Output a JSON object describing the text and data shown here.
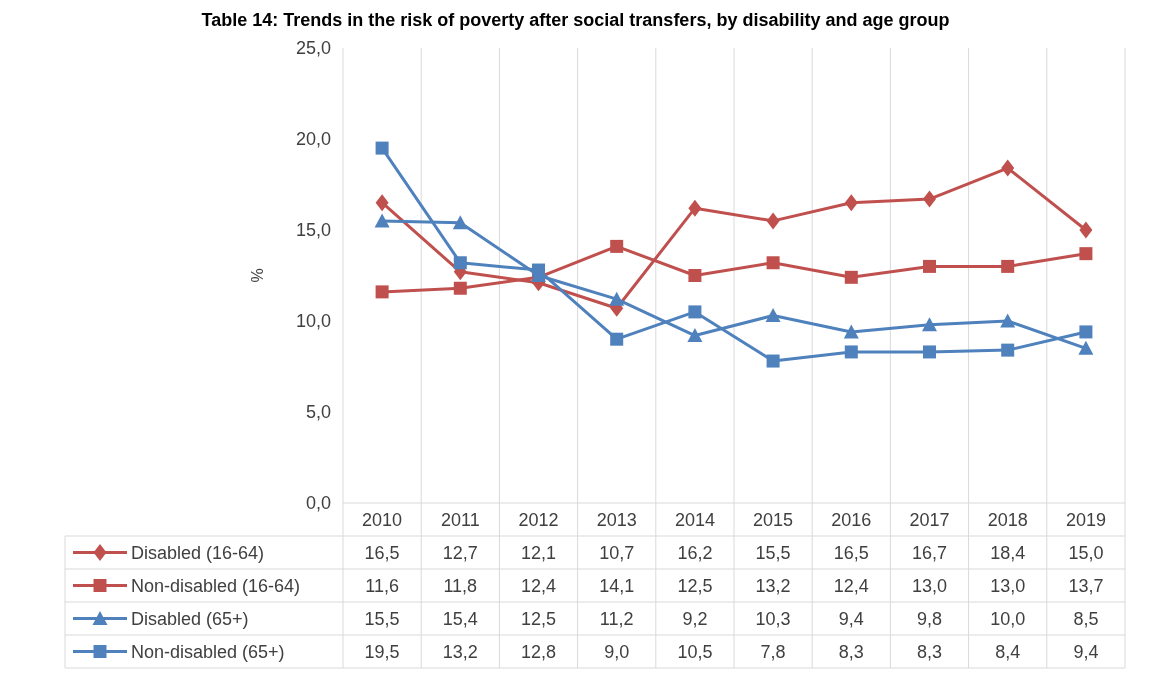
{
  "chart_data": {
    "type": "line",
    "title": "Table 14: Trends in the risk of poverty after social transfers, by disability and age group",
    "ylabel": "%",
    "categories": [
      "2010",
      "2011",
      "2012",
      "2013",
      "2014",
      "2015",
      "2016",
      "2017",
      "2018",
      "2019"
    ],
    "series": [
      {
        "name": "Disabled (16-64)",
        "color": "#c0504d",
        "marker": "diamond",
        "values": [
          16.5,
          12.7,
          12.1,
          10.7,
          16.2,
          15.5,
          16.5,
          16.7,
          18.4,
          15.0
        ],
        "value_labels": [
          "16,5",
          "12,7",
          "12,1",
          "10,7",
          "16,2",
          "15,5",
          "16,5",
          "16,7",
          "18,4",
          "15,0"
        ]
      },
      {
        "name": "Non-disabled (16-64)",
        "color": "#c0504d",
        "marker": "square",
        "values": [
          11.6,
          11.8,
          12.4,
          14.1,
          12.5,
          13.2,
          12.4,
          13.0,
          13.0,
          13.7
        ],
        "value_labels": [
          "11,6",
          "11,8",
          "12,4",
          "14,1",
          "12,5",
          "13,2",
          "12,4",
          "13,0",
          "13,0",
          "13,7"
        ]
      },
      {
        "name": "Disabled (65+)",
        "color": "#4f81bd",
        "marker": "triangle",
        "values": [
          15.5,
          15.4,
          12.5,
          11.2,
          9.2,
          10.3,
          9.4,
          9.8,
          10.0,
          8.5
        ],
        "value_labels": [
          "15,5",
          "15,4",
          "12,5",
          "11,2",
          "9,2",
          "10,3",
          "9,4",
          "9,8",
          "10,0",
          "8,5"
        ]
      },
      {
        "name": "Non-disabled (65+)",
        "color": "#4f81bd",
        "marker": "square",
        "values": [
          19.5,
          13.2,
          12.8,
          9.0,
          10.5,
          7.8,
          8.3,
          8.3,
          8.4,
          9.4
        ],
        "value_labels": [
          "19,5",
          "13,2",
          "12,8",
          "9,0",
          "10,5",
          "7,8",
          "8,3",
          "8,3",
          "8,4",
          "9,4"
        ]
      }
    ],
    "ylim": [
      0,
      25
    ],
    "yticks": [
      {
        "value": 0,
        "label": "0,0"
      },
      {
        "value": 5,
        "label": "5,0"
      },
      {
        "value": 10,
        "label": "10,0"
      },
      {
        "value": 15,
        "label": "15,0"
      },
      {
        "value": 20,
        "label": "20,0"
      },
      {
        "value": 25,
        "label": "25,0"
      }
    ],
    "grid": "x",
    "legend": "bottom",
    "line_style": "solid"
  }
}
